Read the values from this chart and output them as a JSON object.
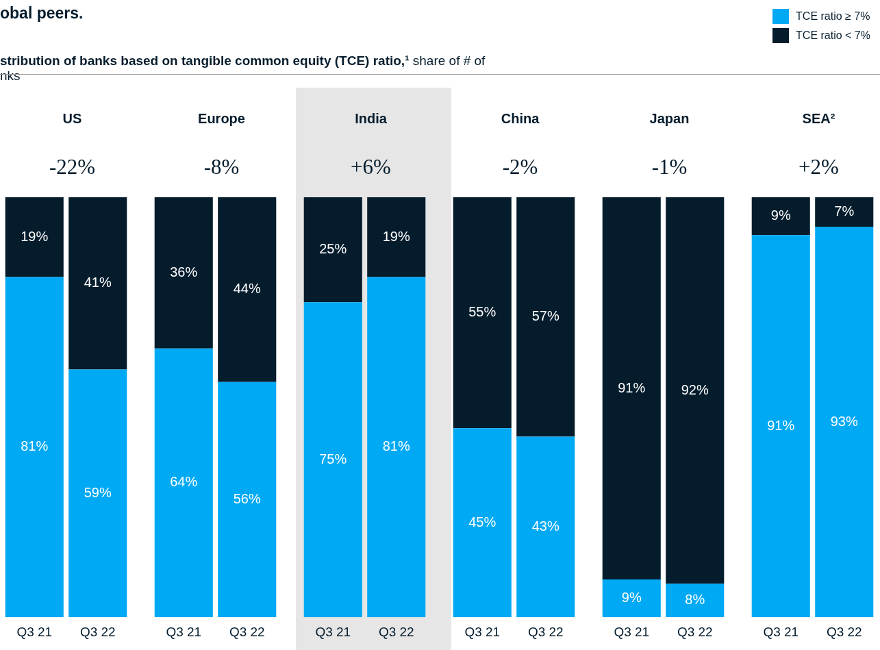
{
  "chart_data": [
    {
      "type": "bar",
      "title": "US",
      "subtitle": "-22%",
      "annotations": [
        "obal peers.",
        "stribution of banks based on tangible common equity (TCE) ratio,¹ share of # of\nnks"
      ],
      "categories": [
        "Q3 21",
        "Q3 22"
      ],
      "stacked": true,
      "tick_labels": "x",
      "legend": "top right",
      "series": [
        {
          "name": "TCE ratio ≥ 7%",
          "color": "#00a9f4",
          "values": [
            81,
            59
          ],
          "value_labels": [
            "81%",
            "59%"
          ]
        },
        {
          "name": "TCE ratio < 7%",
          "color": "#051c2c",
          "values": [
            19,
            41
          ],
          "value_labels": [
            "19%",
            "41%"
          ]
        }
      ]
    },
    {
      "type": "bar",
      "title": "Europe",
      "subtitle": "-8%",
      "categories": [
        "Q3 21",
        "Q3 22"
      ],
      "stacked": true,
      "tick_labels": "x",
      "series": [
        {
          "color": "#00a9f4",
          "values": [
            64,
            56
          ],
          "value_labels": [
            "64%",
            "56%"
          ]
        },
        {
          "color": "#051c2c",
          "values": [
            36,
            44
          ],
          "value_labels": [
            "36%",
            "44%"
          ]
        }
      ]
    },
    {
      "type": "bar",
      "title": "India",
      "subtitle": "+6%",
      "categories": [
        "Q3 21",
        "Q3 22"
      ],
      "stacked": true,
      "tick_labels": "x",
      "series": [
        {
          "color": "#00a9f4",
          "values": [
            75,
            81
          ],
          "value_labels": [
            "75%",
            "81%"
          ]
        },
        {
          "color": "#051c2c",
          "values": [
            25,
            19
          ],
          "value_labels": [
            "25%",
            "19%"
          ]
        }
      ]
    },
    {
      "type": "bar",
      "title": "China",
      "subtitle": "-2%",
      "categories": [
        "Q3 21",
        "Q3 22"
      ],
      "stacked": true,
      "tick_labels": "x",
      "series": [
        {
          "color": "#00a9f4",
          "values": [
            45,
            43
          ],
          "value_labels": [
            "45%",
            "43%"
          ]
        },
        {
          "color": "#051c2c",
          "values": [
            55,
            57
          ],
          "value_labels": [
            "55%",
            "57%"
          ]
        }
      ]
    },
    {
      "type": "bar",
      "title": "Japan",
      "subtitle": "-1%",
      "categories": [
        "Q3 21",
        "Q3 22"
      ],
      "stacked": true,
      "tick_labels": "x",
      "series": [
        {
          "color": "#00a9f4",
          "values": [
            9,
            8
          ],
          "value_labels": [
            "9%",
            "8%"
          ]
        },
        {
          "color": "#051c2c",
          "values": [
            91,
            92
          ],
          "value_labels": [
            "91%",
            "92%"
          ]
        }
      ]
    },
    {
      "type": "bar",
      "title": "SEA²",
      "subtitle": "+2%",
      "categories": [
        "Q3 21",
        "Q3 22"
      ],
      "stacked": true,
      "tick_labels": "x",
      "series": [
        {
          "color": "#00a9f4",
          "values": [
            91,
            93
          ],
          "value_labels": [
            "91%",
            "93%"
          ]
        },
        {
          "color": "#051c2c",
          "values": [
            9,
            7
          ],
          "value_labels": [
            "9%",
            "7%"
          ]
        }
      ]
    }
  ]
}
